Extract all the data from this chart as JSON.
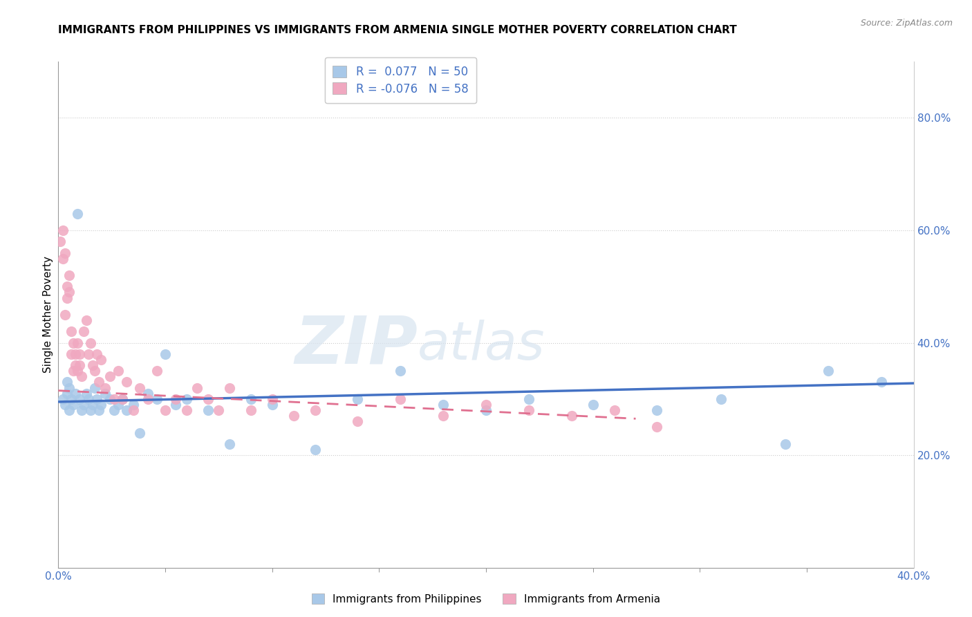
{
  "title": "IMMIGRANTS FROM PHILIPPINES VS IMMIGRANTS FROM ARMENIA SINGLE MOTHER POVERTY CORRELATION CHART",
  "source": "Source: ZipAtlas.com",
  "ylabel": "Single Mother Poverty",
  "ylabel_right_ticks": [
    "20.0%",
    "40.0%",
    "60.0%",
    "80.0%"
  ],
  "ylabel_right_vals": [
    0.2,
    0.4,
    0.6,
    0.8
  ],
  "xlim": [
    0.0,
    0.4
  ],
  "ylim": [
    0.0,
    0.9
  ],
  "legend_r1": "R =  0.077",
  "legend_n1": "N = 50",
  "legend_r2": "R = -0.076",
  "legend_n2": "N = 58",
  "color_philippines": "#a8c8e8",
  "color_armenia": "#f0a8c0",
  "color_philippines_line": "#4472c4",
  "color_armenia_line": "#e07090",
  "color_text_blue": "#4472c4",
  "color_watermark": "#d0dff0",
  "philippines_x": [
    0.002,
    0.003,
    0.004,
    0.004,
    0.005,
    0.005,
    0.006,
    0.007,
    0.008,
    0.009,
    0.01,
    0.011,
    0.012,
    0.013,
    0.014,
    0.015,
    0.016,
    0.017,
    0.018,
    0.019,
    0.02,
    0.022,
    0.024,
    0.026,
    0.028,
    0.03,
    0.032,
    0.035,
    0.038,
    0.042,
    0.046,
    0.05,
    0.055,
    0.06,
    0.07,
    0.08,
    0.09,
    0.1,
    0.12,
    0.14,
    0.16,
    0.18,
    0.2,
    0.22,
    0.25,
    0.28,
    0.31,
    0.34,
    0.36,
    0.385
  ],
  "philippines_y": [
    0.3,
    0.29,
    0.31,
    0.33,
    0.28,
    0.32,
    0.3,
    0.29,
    0.31,
    0.63,
    0.3,
    0.28,
    0.29,
    0.31,
    0.3,
    0.28,
    0.29,
    0.32,
    0.3,
    0.28,
    0.29,
    0.31,
    0.3,
    0.28,
    0.29,
    0.3,
    0.28,
    0.29,
    0.24,
    0.31,
    0.3,
    0.38,
    0.29,
    0.3,
    0.28,
    0.22,
    0.3,
    0.29,
    0.21,
    0.3,
    0.35,
    0.29,
    0.28,
    0.3,
    0.29,
    0.28,
    0.3,
    0.22,
    0.35,
    0.33
  ],
  "armenia_x": [
    0.001,
    0.002,
    0.002,
    0.003,
    0.003,
    0.004,
    0.004,
    0.005,
    0.005,
    0.006,
    0.006,
    0.007,
    0.007,
    0.008,
    0.008,
    0.009,
    0.009,
    0.01,
    0.01,
    0.011,
    0.012,
    0.013,
    0.014,
    0.015,
    0.016,
    0.017,
    0.018,
    0.019,
    0.02,
    0.022,
    0.024,
    0.026,
    0.028,
    0.03,
    0.032,
    0.035,
    0.038,
    0.042,
    0.046,
    0.05,
    0.055,
    0.06,
    0.065,
    0.07,
    0.075,
    0.08,
    0.09,
    0.1,
    0.11,
    0.12,
    0.14,
    0.16,
    0.18,
    0.2,
    0.22,
    0.24,
    0.26,
    0.28
  ],
  "armenia_y": [
    0.58,
    0.6,
    0.55,
    0.56,
    0.45,
    0.5,
    0.48,
    0.52,
    0.49,
    0.42,
    0.38,
    0.4,
    0.35,
    0.36,
    0.38,
    0.4,
    0.35,
    0.38,
    0.36,
    0.34,
    0.42,
    0.44,
    0.38,
    0.4,
    0.36,
    0.35,
    0.38,
    0.33,
    0.37,
    0.32,
    0.34,
    0.3,
    0.35,
    0.3,
    0.33,
    0.28,
    0.32,
    0.3,
    0.35,
    0.28,
    0.3,
    0.28,
    0.32,
    0.3,
    0.28,
    0.32,
    0.28,
    0.3,
    0.27,
    0.28,
    0.26,
    0.3,
    0.27,
    0.29,
    0.28,
    0.27,
    0.28,
    0.25
  ],
  "armenia_line_x_end": 0.27
}
